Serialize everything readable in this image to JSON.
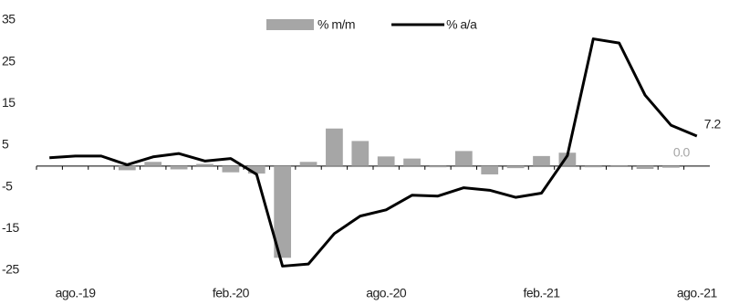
{
  "chart_data": {
    "type": "bar-line",
    "categories": [
      null,
      "ago.-19",
      null,
      null,
      null,
      null,
      null,
      "feb.-20",
      null,
      null,
      null,
      null,
      null,
      "ago.-20",
      null,
      null,
      null,
      null,
      null,
      "feb.-21",
      null,
      null,
      null,
      null,
      null,
      "ago.-21"
    ],
    "series": [
      {
        "name": "% m/m",
        "type": "bar",
        "color": "#a6a6a6",
        "values": [
          null,
          null,
          null,
          -1.0,
          1.0,
          -0.8,
          0.5,
          -1.5,
          -1.8,
          -22.0,
          1.0,
          9.0,
          6.0,
          2.3,
          1.8,
          -0.3,
          3.6,
          -2.0,
          -0.5,
          2.4,
          3.2,
          -0.3,
          0.2,
          -0.7,
          -0.4,
          0.0
        ],
        "value_labels": [
          null,
          null,
          null,
          null,
          null,
          null,
          null,
          null,
          null,
          null,
          null,
          null,
          null,
          null,
          null,
          null,
          null,
          null,
          null,
          null,
          null,
          null,
          null,
          null,
          null,
          "0.0"
        ]
      },
      {
        "name": "% a/a",
        "type": "line",
        "color": "#000000",
        "values": [
          2.0,
          2.4,
          2.4,
          0.3,
          2.2,
          3.0,
          1.2,
          1.8,
          -2.0,
          -24.0,
          -23.5,
          -16.2,
          -12.0,
          -10.5,
          -7.0,
          -7.2,
          -5.2,
          -5.8,
          -7.5,
          -6.5,
          2.5,
          30.5,
          29.5,
          17.0,
          9.8,
          7.2
        ],
        "value_labels": [
          null,
          null,
          null,
          null,
          null,
          null,
          null,
          null,
          null,
          null,
          null,
          null,
          null,
          null,
          null,
          null,
          null,
          null,
          null,
          null,
          null,
          null,
          null,
          null,
          null,
          "7.2"
        ]
      }
    ],
    "ylim": [
      -25,
      35
    ],
    "yticks": [
      -25,
      -15,
      -5,
      5,
      15,
      25,
      35
    ],
    "grid": false,
    "legend": "top"
  }
}
